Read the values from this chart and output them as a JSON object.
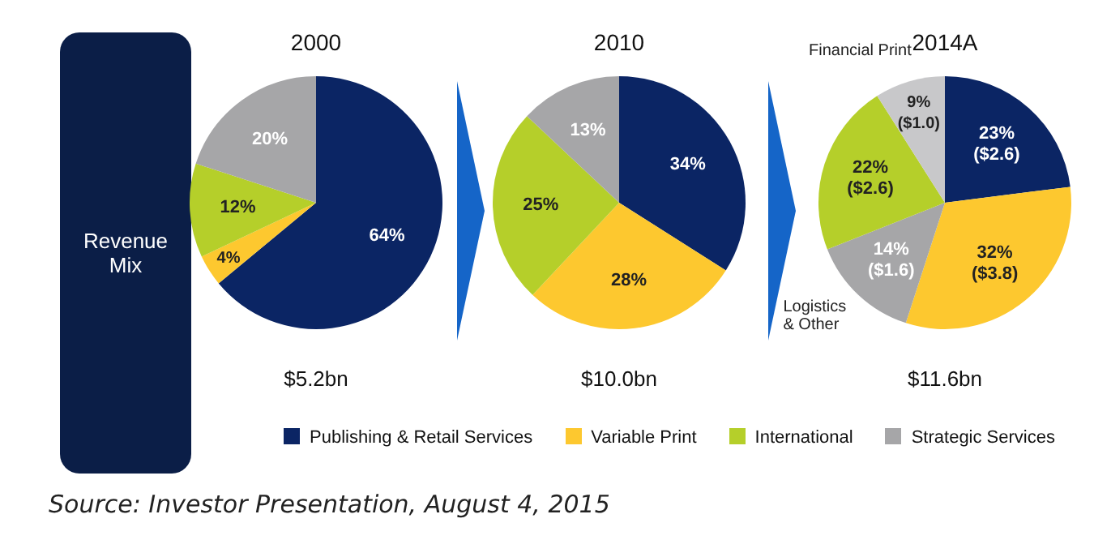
{
  "chart_data": [
    {
      "type": "other",
      "title": "Revenue Mix"
    },
    {
      "type": "pie",
      "title": "2000",
      "subtitle": "$5.2bn",
      "categories": [
        "Publishing & Retail Services",
        "Variable Print",
        "International",
        "Strategic Services"
      ],
      "values": [
        64,
        4,
        12,
        20
      ],
      "colors": [
        "#0b2564",
        "#fdc82f",
        "#b5cf2a",
        "#a6a6a8"
      ],
      "value_labels": [
        "64%",
        "4%",
        "12%",
        "20%"
      ],
      "legend": "bottom",
      "annotations": [
        "Source: Investor Presentation, August 4, 2015"
      ]
    },
    {
      "type": "pie",
      "title": "2010",
      "subtitle": "$10.0bn",
      "categories": [
        null,
        null,
        null,
        null
      ],
      "values": [
        34,
        28,
        25,
        13
      ],
      "colors": [
        "#0b2564",
        "#fdc82f",
        "#b5cf2a",
        "#a6a6a8"
      ],
      "value_labels": [
        "34%",
        "28%",
        "25%",
        "13%"
      ]
    },
    {
      "type": "pie",
      "title": "2014A",
      "subtitle": "$11.6bn",
      "categories": [
        null,
        null,
        "Logistics & Other",
        null,
        "Financial Print"
      ],
      "values": [
        23,
        32,
        14,
        22,
        9
      ],
      "colors": [
        "#0b2564",
        "#fdc82f",
        "#a6a6a8",
        "#b5cf2a",
        "#c8c8ca"
      ],
      "value_labels": [
        "23%\n($2.6)",
        "32%\n($3.8)",
        "14%\n($1.6)",
        "22%\n($2.6)",
        "9%\n($1.0)"
      ]
    }
  ]
}
